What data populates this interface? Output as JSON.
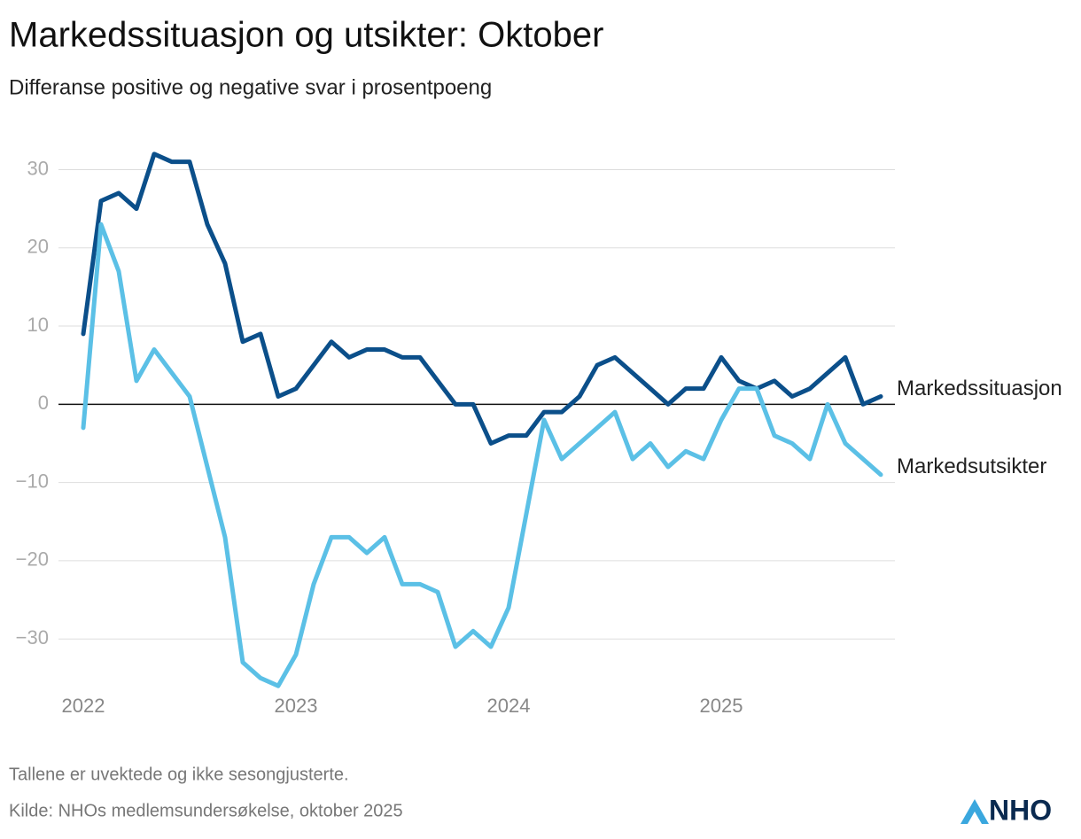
{
  "chart_data": {
    "type": "line",
    "title": "Markedssituasjon og utsikter: Oktober",
    "subtitle": "Differanse positive og negative svar i prosentpoeng",
    "x": [
      "2022-01",
      "2022-02",
      "2022-03",
      "2022-04",
      "2022-05",
      "2022-06",
      "2022-07",
      "2022-08",
      "2022-09",
      "2022-10",
      "2022-11",
      "2022-12",
      "2023-01",
      "2023-02",
      "2023-03",
      "2023-04",
      "2023-05",
      "2023-06",
      "2023-07",
      "2023-08",
      "2023-09",
      "2023-10",
      "2023-11",
      "2023-12",
      "2024-01",
      "2024-02",
      "2024-03",
      "2024-04",
      "2024-05",
      "2024-06",
      "2024-07",
      "2024-08",
      "2024-09",
      "2024-10",
      "2024-11",
      "2024-12",
      "2025-01",
      "2025-02",
      "2025-03",
      "2025-04",
      "2025-05",
      "2025-06",
      "2025-07",
      "2025-08",
      "2025-09",
      "2025-10"
    ],
    "series": [
      {
        "name": "Markedssituasjon",
        "color": "#0b4f8a",
        "values": [
          9,
          26,
          27,
          25,
          32,
          31,
          31,
          23,
          18,
          8,
          9,
          1,
          2,
          5,
          8,
          6,
          7,
          7,
          6,
          6,
          3,
          0,
          0,
          -5,
          -4,
          -4,
          -1,
          -1,
          1,
          5,
          6,
          4,
          2,
          0,
          2,
          2,
          6,
          3,
          2,
          3,
          1,
          2,
          4,
          6,
          0,
          1
        ]
      },
      {
        "name": "Markedsutsikter",
        "color": "#5bc0e6",
        "values": [
          -3,
          23,
          17,
          3,
          7,
          4,
          1,
          -8,
          -17,
          -33,
          -35,
          -36,
          -32,
          -23,
          -17,
          -17,
          -19,
          -17,
          -23,
          -23,
          -24,
          -31,
          -29,
          -31,
          -26,
          -14,
          -2,
          -7,
          -5,
          -3,
          -1,
          -7,
          -5,
          -8,
          -6,
          -7,
          -2,
          2,
          2,
          -4,
          -5,
          -7,
          0,
          -5,
          -7,
          -9
        ]
      }
    ],
    "xticks": [
      2022,
      2023,
      2024,
      2025
    ],
    "ylim": [
      -37,
      33
    ],
    "yticks": [
      {
        "value": -30,
        "label": "−30"
      },
      {
        "value": -20,
        "label": "−20"
      },
      {
        "value": -10,
        "label": "−10"
      },
      0,
      10,
      20,
      30
    ],
    "grid": true,
    "notes": [
      "Tallene er uvektede og ikke sesongjusterte.",
      "Kilde: NHOs medlemsundersøkelse, oktober 2025"
    ],
    "logo": "NHO"
  }
}
